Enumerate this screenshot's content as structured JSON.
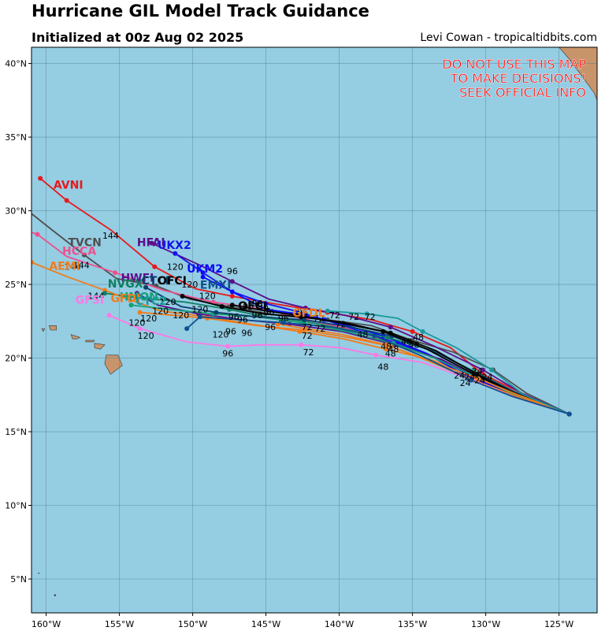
{
  "header": {
    "title": "Hurricane GIL Model Track Guidance",
    "subtitle": "Initialized at 00z Aug 02 2025",
    "credit": "Levi Cowan - tropicaltidbits.com"
  },
  "warning": [
    "DO NOT USE THIS MAP",
    "TO MAKE DECISIONS!",
    "SEEK OFFICIAL INFO"
  ],
  "colors": {
    "ocean": "#95cde3",
    "land": "#c8956a",
    "grid": "#4f7f96",
    "warning": "#ff0000"
  },
  "axes": {
    "lon_range": [
      -161,
      -122.4
    ],
    "lat_range": [
      2.7,
      41.1
    ],
    "lon_ticks": [
      -160,
      -155,
      -150,
      -145,
      -140,
      -135,
      -130,
      -125
    ],
    "lon_tick_labels": [
      "160°W",
      "155°W",
      "150°W",
      "145°W",
      "140°W",
      "135°W",
      "130°W",
      "125°W"
    ],
    "lat_ticks": [
      5,
      10,
      15,
      20,
      25,
      30,
      35,
      40
    ],
    "lat_tick_labels": [
      "5°N",
      "10°N",
      "15°N",
      "20°N",
      "25°N",
      "30°N",
      "35°N",
      "40°N"
    ]
  },
  "tracks": [
    {
      "name": "AVNI",
      "color": "#e8191a",
      "label_at": [
        -159.5,
        31.5
      ],
      "points": [
        [
          -124.3,
          16.2
        ],
        [
          -127.5,
          17.6
        ],
        [
          -130.2,
          18.9
        ],
        [
          -132.4,
          20.7
        ],
        [
          -135,
          21.8
        ],
        [
          -137.8,
          22.6
        ],
        [
          -140.8,
          23.1
        ],
        [
          -144.5,
          23.7
        ],
        [
          -147.3,
          24.2
        ],
        [
          -149.8,
          24.7
        ],
        [
          -152.6,
          26.2
        ],
        [
          -155.6,
          28.7
        ],
        [
          -158.6,
          30.7
        ],
        [
          -160.4,
          32.2
        ]
      ],
      "hour_labels": [
        [
          "144",
          -155.6,
          28.1
        ]
      ]
    },
    {
      "name": "TVCN",
      "color": "#4f4f4f",
      "label_at": [
        -158.5,
        27.6
      ],
      "points": [
        [
          -124.3,
          16.2
        ],
        [
          -127.2,
          17.6
        ],
        [
          -129.5,
          19.2
        ],
        [
          -132.2,
          20.4
        ],
        [
          -135,
          21.2
        ],
        [
          -137.8,
          22.2
        ],
        [
          -140.8,
          22.6
        ],
        [
          -144.2,
          22.9
        ],
        [
          -147.5,
          23.5
        ],
        [
          -150.2,
          24.0
        ],
        [
          -152.5,
          24.9
        ],
        [
          -155.2,
          25.4
        ],
        [
          -157.4,
          27.0
        ],
        [
          -159.6,
          28.7
        ],
        [
          -161.5,
          30.2
        ]
      ],
      "hour_labels": [
        [
          "144",
          -157.6,
          26.1
        ]
      ]
    },
    {
      "name": "HCCA",
      "color": "#ef4f8f",
      "label_at": [
        -158.9,
        27.0
      ],
      "points": [
        [
          -124.3,
          16.2
        ],
        [
          -127.8,
          17.4
        ],
        [
          -130.5,
          18.6
        ],
        [
          -133.2,
          19.9
        ],
        [
          -136,
          20.9
        ],
        [
          -139,
          21.9
        ],
        [
          -142.2,
          22.6
        ],
        [
          -145,
          23.3
        ],
        [
          -148.6,
          23.8
        ],
        [
          -152,
          24.6
        ],
        [
          -155.3,
          25.8
        ],
        [
          -158.6,
          26.9
        ],
        [
          -160.6,
          28.4
        ],
        [
          -161.5,
          28.7
        ]
      ],
      "hour_labels": [
        [
          "144",
          -158.2,
          26.0
        ]
      ]
    },
    {
      "name": "AEMI",
      "color": "#f07c1c",
      "label_at": [
        -159.8,
        26.0
      ],
      "points": [
        [
          -124.3,
          16.2
        ],
        [
          -127.8,
          17.4
        ],
        [
          -130.5,
          18.8
        ],
        [
          -133.8,
          19.9
        ],
        [
          -136.8,
          20.6
        ],
        [
          -139.7,
          21.3
        ],
        [
          -142.7,
          21.8
        ],
        [
          -146,
          22.3
        ],
        [
          -149,
          22.8
        ],
        [
          -152.2,
          23.2
        ],
        [
          -156,
          24.6
        ],
        [
          -158.5,
          25.5
        ],
        [
          -161,
          26.5
        ]
      ],
      "hour_labels": [
        [
          "144",
          -156.6,
          24.0
        ]
      ]
    },
    {
      "name": "HFAI",
      "color": "#5a0f8c",
      "label_at": [
        -153.8,
        27.6
      ],
      "points": [
        [
          -124.3,
          16.2
        ],
        [
          -127.5,
          17.6
        ],
        [
          -130.2,
          19.2
        ],
        [
          -133.5,
          20.8
        ],
        [
          -136.5,
          22.1
        ],
        [
          -139.6,
          22.9
        ],
        [
          -142.3,
          23.4
        ],
        [
          -144.8,
          24.0
        ],
        [
          -147.3,
          25.2
        ],
        [
          -149.5,
          26.3
        ],
        [
          -152.8,
          27.8
        ]
      ],
      "hour_labels": [
        [
          "96",
          -147.3,
          25.7
        ],
        [
          "120",
          -151.2,
          26.0
        ]
      ]
    },
    {
      "name": "UKX2",
      "color": "#1515e8",
      "label_at": [
        -152.4,
        27.4
      ],
      "points": [
        [
          -124.3,
          16.2
        ],
        [
          -128,
          17.4
        ],
        [
          -131,
          18.8
        ],
        [
          -133.8,
          20.2
        ],
        [
          -136,
          21.0
        ],
        [
          -138.8,
          21.9
        ],
        [
          -141,
          22.6
        ],
        [
          -143,
          23.2
        ],
        [
          -145,
          23.7
        ],
        [
          -147.3,
          24.5
        ],
        [
          -149.3,
          25.8
        ],
        [
          -151.2,
          27.1
        ]
      ],
      "hour_labels": [
        [
          "120",
          -150.2,
          24.8
        ]
      ]
    },
    {
      "name": "UKM2",
      "color": "#0a0aff",
      "label_at": [
        -150.4,
        25.8
      ],
      "points": [
        [
          -124.3,
          16.2
        ],
        [
          -128.2,
          17.6
        ],
        [
          -131.2,
          18.7
        ],
        [
          -134,
          20.3
        ],
        [
          -137,
          21.5
        ],
        [
          -139.8,
          22.3
        ],
        [
          -142.8,
          23.0
        ],
        [
          -145,
          23.3
        ],
        [
          -147.3,
          24.5
        ],
        [
          -149.3,
          25.5
        ]
      ],
      "hour_labels": [
        [
          "120",
          -149.0,
          24.0
        ]
      ]
    },
    {
      "name": "HWFI",
      "color": "#5a0f8c",
      "label_at": [
        -154.9,
        25.2
      ],
      "points": [
        [
          -124.3,
          16.2
        ],
        [
          -127.5,
          17.4
        ],
        [
          -130.4,
          18.6
        ],
        [
          -133,
          19.9
        ],
        [
          -136.2,
          20.9
        ],
        [
          -139.8,
          21.8
        ],
        [
          -143.4,
          22.3
        ],
        [
          -146.6,
          22.6
        ],
        [
          -149.6,
          23.0
        ],
        [
          -152.4,
          23.6
        ],
        [
          -153.8,
          24.4
        ]
      ],
      "hour_labels": [
        [
          "120",
          -149.5,
          23.1
        ]
      ]
    },
    {
      "name": "NVGX",
      "color": "#0f7f5f",
      "label_at": [
        -155.8,
        24.8
      ],
      "points": [
        [
          -124.3,
          16.2
        ],
        [
          -128,
          17.7
        ],
        [
          -130.8,
          19.1
        ],
        [
          -133.6,
          20.5
        ],
        [
          -136.7,
          21.4
        ],
        [
          -139.8,
          22.0
        ],
        [
          -142.4,
          22.5
        ],
        [
          -145,
          22.8
        ],
        [
          -147.5,
          23.3
        ],
        [
          -150.5,
          23.8
        ],
        [
          -153.8,
          24.1
        ],
        [
          -156,
          24.4
        ]
      ],
      "hour_labels": [
        [
          "120",
          -151.7,
          23.6
        ]
      ]
    },
    {
      "name": "HMON",
      "color": "#17a077",
      "label_at": [
        -155.0,
        23.9
      ],
      "points": [
        [
          -124.3,
          16.2
        ],
        [
          -127.8,
          17.4
        ],
        [
          -130.6,
          18.7
        ],
        [
          -133.5,
          20.0
        ],
        [
          -136.3,
          21.0
        ],
        [
          -139.5,
          21.8
        ],
        [
          -142.6,
          22.4
        ],
        [
          -145.6,
          22.8
        ],
        [
          -148.6,
          23.0
        ],
        [
          -151.6,
          23.3
        ],
        [
          -154.2,
          23.6
        ]
      ],
      "hour_labels": [
        [
          "120",
          -150.8,
          22.7
        ]
      ]
    },
    {
      "name": "CTCI",
      "color": "#0b3f6b",
      "label_at": [
        -153.5,
        25.0
      ],
      "points": [
        [
          -124.3,
          16.2
        ],
        [
          -127.8,
          17.6
        ],
        [
          -130.5,
          18.9
        ],
        [
          -133.2,
          20.3
        ],
        [
          -136.4,
          21.5
        ],
        [
          -139.2,
          22.1
        ],
        [
          -142.4,
          22.6
        ],
        [
          -145.6,
          22.8
        ],
        [
          -148.4,
          23.1
        ],
        [
          -150.8,
          23.5
        ],
        [
          -153.2,
          24.8
        ]
      ],
      "hour_labels": [
        [
          "120",
          -153.0,
          22.5
        ]
      ]
    },
    {
      "name": "OFCI",
      "color": "#000000",
      "label_at": [
        -152.4,
        25.0
      ],
      "points": [
        [
          -124.3,
          16.2
        ],
        [
          -128,
          17.6
        ],
        [
          -130.6,
          18.9
        ],
        [
          -133.4,
          20.5
        ],
        [
          -136.5,
          21.7
        ],
        [
          -139.6,
          22.4
        ],
        [
          -142.6,
          22.8
        ],
        [
          -145.2,
          23.0
        ],
        [
          -148,
          23.5
        ],
        [
          -150.7,
          24.2
        ]
      ],
      "hour_labels": [
        [
          "120",
          -152.2,
          23.0
        ]
      ]
    },
    {
      "name": "OFCL",
      "color": "#000000",
      "label_at": [
        -146.9,
        23.3
      ],
      "points": [
        [
          -124.3,
          16.2
        ],
        [
          -128,
          17.6
        ],
        [
          -130.8,
          18.9
        ],
        [
          -134,
          20.6
        ],
        [
          -137,
          21.8
        ],
        [
          -140,
          22.4
        ],
        [
          -142.8,
          22.9
        ],
        [
          -145,
          23.2
        ],
        [
          -147.3,
          23.6
        ]
      ],
      "hour_labels": [
        [
          "96",
          -145.2,
          23.3
        ]
      ]
    },
    {
      "name": "GFDI",
      "color": "#f07c1c",
      "label_at": [
        -155.6,
        23.8
      ],
      "points": [
        [
          -124.3,
          16.2
        ],
        [
          -127.8,
          17.5
        ],
        [
          -130.5,
          18.6
        ],
        [
          -133.8,
          19.8
        ],
        [
          -136.5,
          20.8
        ],
        [
          -139.4,
          21.4
        ],
        [
          -142.4,
          21.9
        ],
        [
          -145.6,
          22.2
        ],
        [
          -149,
          22.7
        ],
        [
          -153.6,
          23.1
        ]
      ],
      "hour_labels": [
        [
          "120",
          -153.8,
          22.2
        ]
      ]
    },
    {
      "name": "GFDL",
      "color": "#f07c1c",
      "label_at": [
        -143.2,
        22.8
      ],
      "points": [
        [
          -124.3,
          16.2
        ],
        [
          -127.9,
          17.4
        ],
        [
          -130.8,
          18.5
        ],
        [
          -133.9,
          19.8
        ],
        [
          -136.8,
          20.9
        ],
        [
          -139.8,
          21.6
        ],
        [
          -142.3,
          22.0
        ],
        [
          -144.2,
          22.3
        ]
      ],
      "hour_labels": [
        [
          "72",
          -142.2,
          21.3
        ]
      ]
    },
    {
      "name": "GFSI",
      "color": "#ff78e6",
      "label_at": [
        -158.0,
        23.7
      ],
      "points": [
        [
          -124.3,
          16.2
        ],
        [
          -127.9,
          17.3
        ],
        [
          -130.9,
          18.5
        ],
        [
          -134.3,
          19.7
        ],
        [
          -137.5,
          20.2
        ],
        [
          -139.9,
          20.7
        ],
        [
          -142.6,
          20.9
        ],
        [
          -145.2,
          20.9
        ],
        [
          -147.6,
          20.8
        ],
        [
          -150.4,
          21.1
        ],
        [
          -153.6,
          22.0
        ],
        [
          -155.7,
          22.9
        ]
      ],
      "hour_labels": [
        [
          "96",
          -147.6,
          20.1
        ],
        [
          "120",
          -153.2,
          21.3
        ]
      ]
    },
    {
      "name": "CTC2",
      "color": "#1a9a9a",
      "label_at": [
        -153.9,
        23.6
      ],
      "points": [
        [
          -124.3,
          16.2
        ],
        [
          -127.4,
          17.5
        ],
        [
          -129.6,
          19.2
        ],
        [
          -132,
          20.7
        ],
        [
          -134.3,
          21.8
        ],
        [
          -136,
          22.7
        ],
        [
          -138.1,
          23.0
        ],
        [
          -140.8,
          23.2
        ]
      ],
      "hour_labels": []
    },
    {
      "name": "EMXI",
      "color": "#0e4f8f",
      "label_at": [
        -149.5,
        24.7
      ],
      "points": [
        [
          -124.3,
          16.2
        ],
        [
          -128.2,
          17.4
        ],
        [
          -131,
          18.5
        ],
        [
          -134.5,
          20.2
        ],
        [
          -137.6,
          21.5
        ],
        [
          -140.5,
          22.1
        ],
        [
          -143.8,
          22.4
        ],
        [
          -146.8,
          22.6
        ],
        [
          -149.5,
          22.8
        ],
        [
          -150.4,
          22.0
        ]
      ],
      "hour_labels": [
        [
          "120",
          -148.1,
          21.4
        ]
      ]
    }
  ],
  "hour_labels_cluster": [
    [
      "24",
      -131.1,
      18.5
    ],
    [
      "24",
      -130.4,
      18.3
    ],
    [
      "24",
      -131.4,
      18.1
    ],
    [
      "24",
      -131.8,
      18.6
    ],
    [
      "24",
      -130.6,
      18.9
    ],
    [
      "24",
      -129.9,
      18.5
    ],
    [
      "48",
      -134.9,
      20.7
    ],
    [
      "48",
      -135.4,
      20.9
    ],
    [
      "48",
      -136.5,
      20.1
    ],
    [
      "48",
      -137.0,
      19.2
    ],
    [
      "48",
      -136.8,
      20.6
    ],
    [
      "48",
      -134.6,
      21.2
    ],
    [
      "48",
      -138.4,
      21.4
    ],
    [
      "48",
      -136.3,
      20.4
    ],
    [
      "72",
      -139.9,
      22.1
    ],
    [
      "72",
      -141.3,
      21.8
    ],
    [
      "72",
      -142.2,
      21.9
    ],
    [
      "72",
      -140.3,
      22.7
    ],
    [
      "72",
      -139.0,
      22.6
    ],
    [
      "72",
      -137.9,
      22.6
    ],
    [
      "72",
      -142.1,
      20.2
    ],
    [
      "72",
      -141.4,
      22.5
    ],
    [
      "96",
      -145.6,
      22.7
    ],
    [
      "96",
      -144.8,
      22.9
    ],
    [
      "96",
      -146.6,
      22.4
    ],
    [
      "96",
      -142.5,
      22.9
    ],
    [
      "96",
      -143.8,
      22.5
    ],
    [
      "96",
      -146.3,
      21.5
    ],
    [
      "96",
      -147.4,
      21.6
    ],
    [
      "96",
      -144.7,
      21.9
    ],
    [
      "96",
      -147.2,
      22.6
    ],
    [
      "96",
      -145.6,
      23.5
    ],
    [
      "96",
      -146.2,
      23.3
    ]
  ],
  "labels_of_note": {
    "text_color_map": {
      "AVNI": "#e8191a",
      "TVCN": "#4f4f4f",
      "HCCA": "#ef4f8f",
      "AEMI": "#f07c1c",
      "HFAI": "#5a0f8c",
      "UKX2": "#1515e8",
      "UKM2": "#0a0aff",
      "HWFI": "#5a0f8c",
      "NVGX": "#0f7f5f",
      "HMON": "#17a077",
      "CTCI": "#0b3f6b",
      "OFCI": "#000000",
      "OFCL": "#000000",
      "GFDI": "#f07c1c",
      "GFDL": "#f07c1c",
      "GFSI": "#ff78e6",
      "CTC2": "#1a9a9a",
      "EMXI": "#0e4f8f"
    }
  }
}
